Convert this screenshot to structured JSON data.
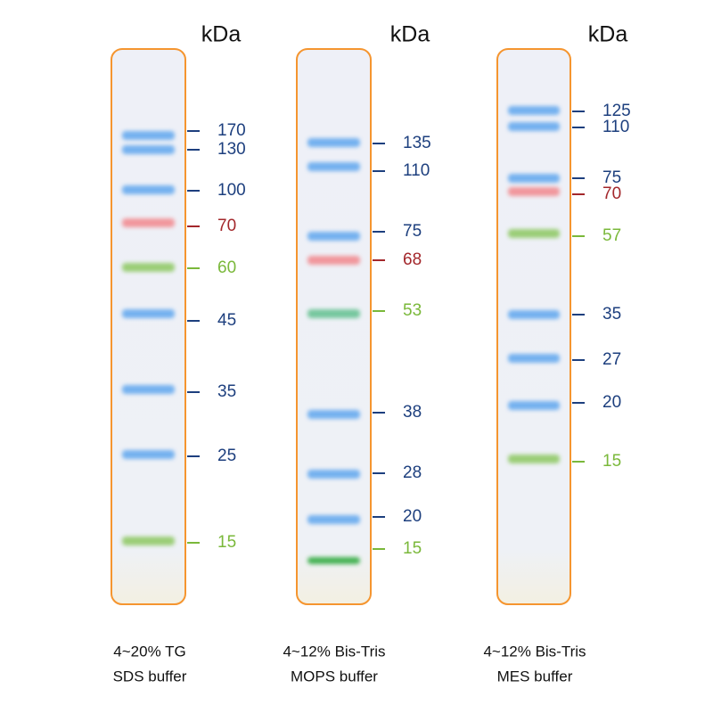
{
  "lanes": [
    {
      "unit": "kDa",
      "caption": [
        "4~20% TG",
        "SDS buffer"
      ],
      "bands": [
        {
          "label": "170",
          "color": "blue"
        },
        {
          "label": "130",
          "color": "blue"
        },
        {
          "label": "100",
          "color": "blue"
        },
        {
          "label": "70",
          "color": "red"
        },
        {
          "label": "60",
          "color": "green"
        },
        {
          "label": "45",
          "color": "blue"
        },
        {
          "label": "35",
          "color": "blue"
        },
        {
          "label": "25",
          "color": "blue"
        },
        {
          "label": "15",
          "color": "green"
        }
      ]
    },
    {
      "unit": "kDa",
      "caption": [
        "4~12% Bis-Tris",
        "MOPS buffer"
      ],
      "bands": [
        {
          "label": "135",
          "color": "blue"
        },
        {
          "label": "110",
          "color": "blue"
        },
        {
          "label": "75",
          "color": "blue"
        },
        {
          "label": "68",
          "color": "red"
        },
        {
          "label": "53",
          "color": "green"
        },
        {
          "label": "38",
          "color": "blue"
        },
        {
          "label": "28",
          "color": "blue"
        },
        {
          "label": "20",
          "color": "blue"
        },
        {
          "label": "15",
          "color": "green"
        }
      ]
    },
    {
      "unit": "kDa",
      "caption": [
        "4~12% Bis-Tris",
        "MES buffer"
      ],
      "bands": [
        {
          "label": "125",
          "color": "blue"
        },
        {
          "label": "110",
          "color": "blue"
        },
        {
          "label": "75",
          "color": "blue"
        },
        {
          "label": "70",
          "color": "red"
        },
        {
          "label": "57",
          "color": "green"
        },
        {
          "label": "35",
          "color": "blue"
        },
        {
          "label": "27",
          "color": "blue"
        },
        {
          "label": "20",
          "color": "blue"
        },
        {
          "label": "15",
          "color": "green"
        }
      ]
    }
  ]
}
